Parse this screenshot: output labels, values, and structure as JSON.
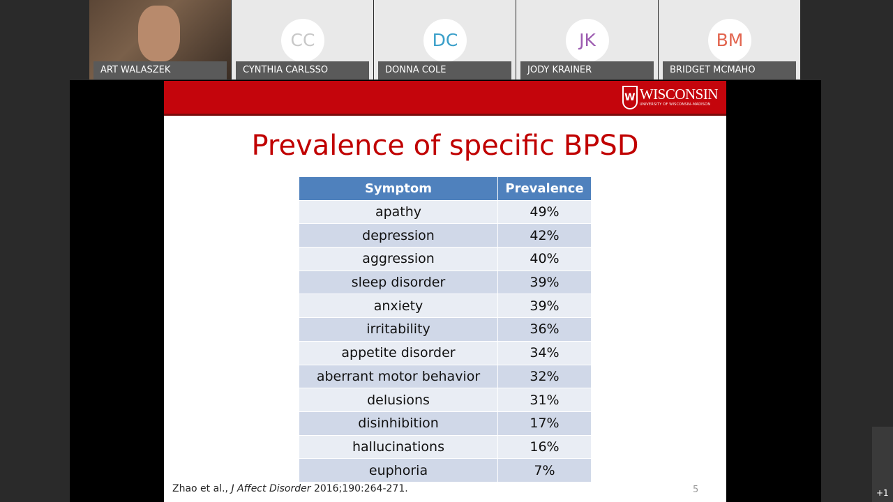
{
  "participants": [
    {
      "name": "ART WALASZEK"
    },
    {
      "name": "CYNTHIA CARLSSO",
      "initials": "CC",
      "color": "#c8c8c8"
    },
    {
      "name": "DONNA COLE",
      "initials": "DC",
      "color": "#3a9fc9"
    },
    {
      "name": "JODY KRAINER",
      "initials": "JK",
      "color": "#9c5bb0"
    },
    {
      "name": "BRIDGET MCMAHO",
      "initials": "BM",
      "color": "#e2654f"
    }
  ],
  "slide": {
    "logo": {
      "name": "WISCONSIN",
      "subtitle": "UNIVERSITY OF WISCONSIN–MADISON"
    },
    "title": "Prevalence of specific BPSD",
    "table": {
      "header": [
        "Symptom",
        "Prevalence"
      ],
      "rows": [
        [
          "apathy",
          "49%"
        ],
        [
          "depression",
          "42%"
        ],
        [
          "aggression",
          "40%"
        ],
        [
          "sleep disorder",
          "39%"
        ],
        [
          "anxiety",
          "39%"
        ],
        [
          "irritability",
          "36%"
        ],
        [
          "appetite disorder",
          "34%"
        ],
        [
          "aberrant motor behavior",
          "32%"
        ],
        [
          "delusions",
          "31%"
        ],
        [
          "disinhibition",
          "17%"
        ],
        [
          "hallucinations",
          "16%"
        ],
        [
          "euphoria",
          "7%"
        ]
      ]
    },
    "citation": {
      "authors": "Zhao et al.,",
      "journal": "J Affect Disorder",
      "details": "2016;190:264-271."
    },
    "page_number": "5"
  },
  "more_participants": "+1"
}
